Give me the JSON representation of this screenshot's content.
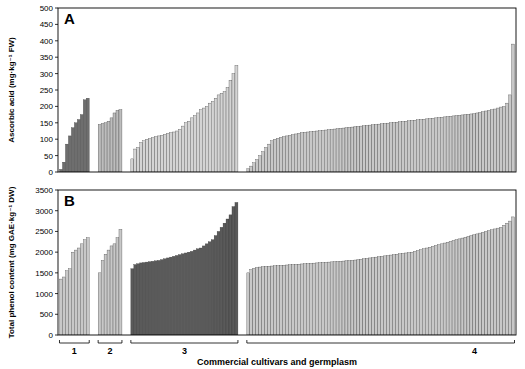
{
  "chart_data": [
    {
      "type": "bar",
      "title": "A",
      "y_label": "Ascorbic acid (mg·kg⁻¹ FW)",
      "ylim": [
        0,
        500
      ],
      "yticks": [
        0,
        50,
        100,
        150,
        200,
        250,
        300,
        350,
        400,
        450,
        500
      ],
      "series": [
        {
          "color": "#6e6e6e",
          "values": [
            8,
            30,
            85,
            110,
            135,
            150,
            160,
            175,
            220,
            225
          ]
        },
        {
          "color": "#bdbdbd",
          "values": [
            145,
            148,
            150,
            155,
            165,
            180,
            188,
            190
          ]
        },
        {
          "color": "#d4d4d4",
          "values": [
            40,
            70,
            75,
            90,
            95,
            100,
            102,
            105,
            108,
            110,
            112,
            115,
            118,
            120,
            122,
            125,
            130,
            140,
            150,
            155,
            165,
            172,
            180,
            190,
            195,
            200,
            210,
            215,
            225,
            235,
            240,
            245,
            258,
            280,
            300,
            325
          ]
        },
        {
          "color": "#c8c8c8",
          "values": [
            10,
            18,
            28,
            38,
            50,
            62,
            75,
            85,
            95,
            100,
            103,
            106,
            108,
            110,
            112,
            114,
            116,
            118,
            120,
            121,
            122,
            123,
            124,
            125,
            126,
            127,
            128,
            129,
            130,
            131,
            132,
            133,
            134,
            135,
            136,
            137,
            138,
            139,
            140,
            141,
            142,
            143,
            144,
            145,
            146,
            147,
            148,
            149,
            150,
            151,
            152,
            153,
            154,
            155,
            156,
            157,
            158,
            159,
            160,
            161,
            162,
            163,
            164,
            165,
            166,
            167,
            168,
            169,
            170,
            171,
            172,
            173,
            174,
            175,
            176,
            177,
            178,
            180,
            182,
            184,
            186,
            188,
            190,
            192,
            195,
            198,
            200,
            210,
            235,
            390
          ]
        }
      ]
    },
    {
      "type": "bar",
      "title": "B",
      "y_label": "Total phenol content (mg GAE·kg⁻¹ DW)",
      "x_label": "Commercial cultivars and germplasm",
      "ylim": [
        0,
        3500
      ],
      "yticks": [
        0,
        500,
        1000,
        1500,
        2000,
        2500,
        3000,
        3500
      ],
      "series": [
        {
          "name": "1",
          "color": "#c8c8c8",
          "values": [
            1350,
            1400,
            1550,
            1600,
            2000,
            2050,
            2100,
            2200,
            2300,
            2350
          ]
        },
        {
          "name": "2",
          "color": "#c8c8c8",
          "values": [
            1500,
            1800,
            1950,
            2050,
            2150,
            2200,
            2350,
            2550
          ]
        },
        {
          "name": "3",
          "color": "#5a5a5a",
          "values": [
            1600,
            1700,
            1720,
            1740,
            1750,
            1760,
            1770,
            1780,
            1790,
            1800,
            1820,
            1840,
            1860,
            1880,
            1900,
            1920,
            1940,
            1960,
            1980,
            2000,
            2020,
            2050,
            2080,
            2100,
            2150,
            2200,
            2250,
            2300,
            2400,
            2500,
            2600,
            2700,
            2800,
            2900,
            3100,
            3200
          ]
        },
        {
          "name": "4",
          "color": "#c8c8c8",
          "values": [
            1500,
            1580,
            1610,
            1630,
            1640,
            1650,
            1655,
            1660,
            1665,
            1670,
            1675,
            1680,
            1685,
            1690,
            1695,
            1700,
            1705,
            1710,
            1715,
            1720,
            1725,
            1730,
            1735,
            1740,
            1745,
            1750,
            1755,
            1760,
            1765,
            1770,
            1775,
            1780,
            1785,
            1790,
            1795,
            1800,
            1810,
            1820,
            1830,
            1840,
            1850,
            1860,
            1870,
            1880,
            1890,
            1900,
            1910,
            1920,
            1930,
            1940,
            1950,
            1960,
            1970,
            1980,
            1990,
            2000,
            2020,
            2040,
            2060,
            2080,
            2100,
            2120,
            2140,
            2160,
            2180,
            2200,
            2220,
            2240,
            2260,
            2280,
            2300,
            2320,
            2340,
            2360,
            2380,
            2400,
            2420,
            2440,
            2460,
            2480,
            2500,
            2520,
            2540,
            2560,
            2580,
            2600,
            2650,
            2700,
            2750,
            2850
          ]
        }
      ]
    }
  ]
}
